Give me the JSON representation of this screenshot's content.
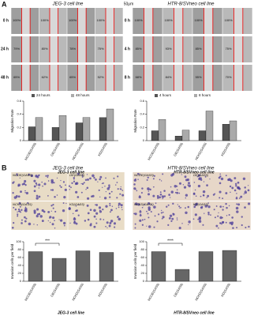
{
  "figure": {
    "panel_a": "A",
    "panel_b": "B",
    "a_left_title": "JEG-3 cell line",
    "a_right_title": "HTR-8/SVneo cell line",
    "scale_bar": "50μm",
    "a_left_rows": [
      "0 h",
      "24 h",
      "48 h"
    ],
    "a_right_rows": [
      "0 h",
      "4 h",
      "8 h"
    ],
    "a_left_pct": [
      [
        "100%",
        "100%",
        "100%",
        "100%"
      ],
      [
        "79%",
        "80%",
        "78%",
        "75%"
      ],
      [
        "65%",
        "62%",
        "65%",
        "52%"
      ]
    ],
    "a_right_pct": [
      [
        "100%",
        "100%",
        "100%",
        "100%"
      ],
      [
        "85%",
        "93%",
        "85%",
        "75%"
      ],
      [
        "68%",
        "84%",
        "55%",
        "70%"
      ]
    ],
    "b_left_title": "JEG-3 cell line",
    "b_right_title": "HTR-8/SVneo cell line",
    "b_left_labels": [
      "NCOE(GAS5)",
      "OE(GAS5)",
      "NCKD(GAS5)",
      "KD(GAS5)"
    ],
    "b_right_labels": [
      "NCOE(GAS5)",
      "OE(GAS5)",
      "NCKD(GAS5)",
      "KD(GAS5)"
    ]
  },
  "chart_data": [
    {
      "type": "bar",
      "title": "JEG-3 cell line",
      "y_label": "Migration Rate",
      "categories": [
        "NCOE(GAS5)",
        "OE(GAS5)",
        "NCKD(GAS5)",
        "KD(GAS5)"
      ],
      "series": [
        {
          "name": "24 hours",
          "color": "#555555",
          "values": [
            0.21,
            0.2,
            0.27,
            0.35
          ]
        },
        {
          "name": "48 hours",
          "color": "#aaaaaa",
          "values": [
            0.35,
            0.38,
            0.35,
            0.48
          ]
        }
      ],
      "ylim": [
        0,
        0.6
      ],
      "yticks": [
        0,
        0.2,
        0.4,
        0.6
      ]
    },
    {
      "type": "bar",
      "title": "HTR-8/SVneo cell line",
      "y_label": "Migration Rate",
      "categories": [
        "NCOE(GAS5)",
        "OE(GAS5)",
        "NCKD(GAS5)",
        "KD(GAS5)"
      ],
      "series": [
        {
          "name": "4 hours",
          "color": "#555555",
          "values": [
            0.15,
            0.07,
            0.15,
            0.25
          ]
        },
        {
          "name": "8 hours",
          "color": "#aaaaaa",
          "values": [
            0.32,
            0.16,
            0.45,
            0.3
          ]
        }
      ],
      "ylim": [
        0,
        0.6
      ],
      "yticks": [
        0,
        0.2,
        0.4,
        0.6
      ]
    },
    {
      "type": "bar",
      "title": "JEG-3 cell line",
      "y_label": "Invasion cells per field",
      "annotation": "***",
      "categories": [
        "NCOE(GAS5)",
        "OE(GAS5)",
        "NCKD(GAS5)",
        "KD(GAS5)"
      ],
      "series": [
        {
          "color": "#666666",
          "values": [
            75,
            58,
            77,
            73
          ]
        }
      ],
      "ylim": [
        0,
        100
      ],
      "yticks": [
        0,
        20,
        40,
        60,
        80,
        100
      ]
    },
    {
      "type": "bar",
      "title": "HTR-8/SVneo cell line",
      "y_label": "Invasion cells per field",
      "annotation": "****",
      "categories": [
        "NCOE(GAS5)",
        "OE(GAS5)",
        "NCKD(GAS5)",
        "KD(GAS5)"
      ],
      "series": [
        {
          "color": "#666666",
          "values": [
            75,
            30,
            75,
            78
          ]
        }
      ],
      "ylim": [
        0,
        100
      ],
      "yticks": [
        0,
        20,
        40,
        60,
        80,
        100
      ]
    }
  ]
}
